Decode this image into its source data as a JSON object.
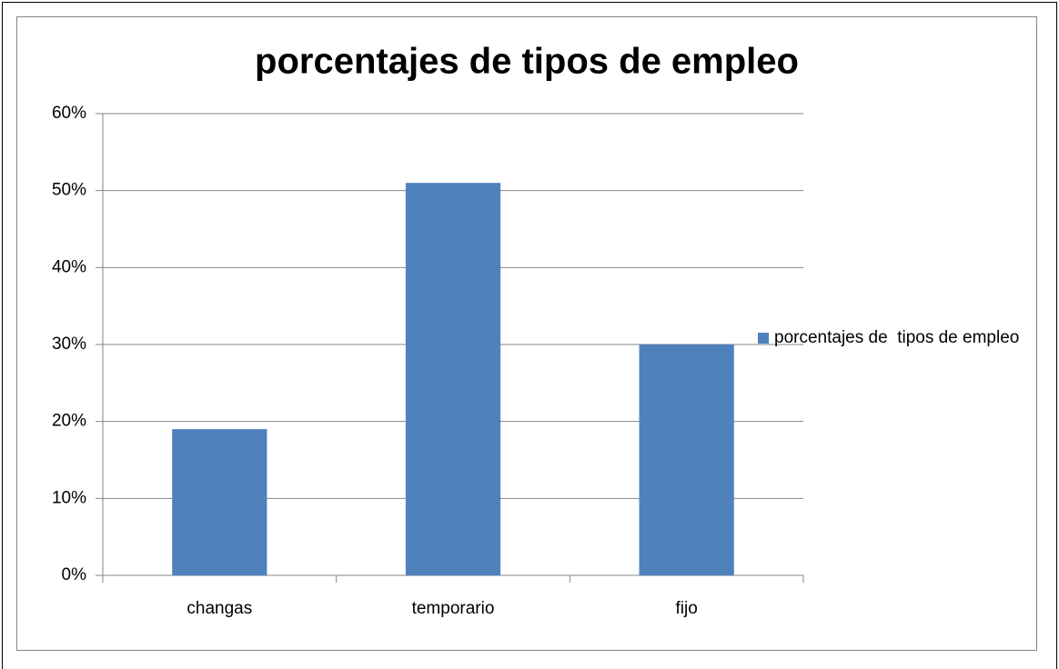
{
  "chart_data": {
    "type": "bar",
    "title": "porcentajes de  tipos de empleo",
    "categories": [
      "changas",
      "temporario",
      "fijo"
    ],
    "series": [
      {
        "name": "porcentajes de  tipos de empleo",
        "color": "#4f81bd",
        "values": [
          19,
          51,
          30
        ]
      }
    ],
    "ylim": [
      0,
      60
    ],
    "yticks": [
      {
        "value": 0,
        "label": "0%"
      },
      {
        "value": 10,
        "label": "10%"
      },
      {
        "value": 20,
        "label": "20%"
      },
      {
        "value": 30,
        "label": "30%"
      },
      {
        "value": 40,
        "label": "40%"
      },
      {
        "value": 50,
        "label": "50%"
      },
      {
        "value": 60,
        "label": "60%"
      }
    ],
    "grid": true,
    "legend": "right"
  }
}
